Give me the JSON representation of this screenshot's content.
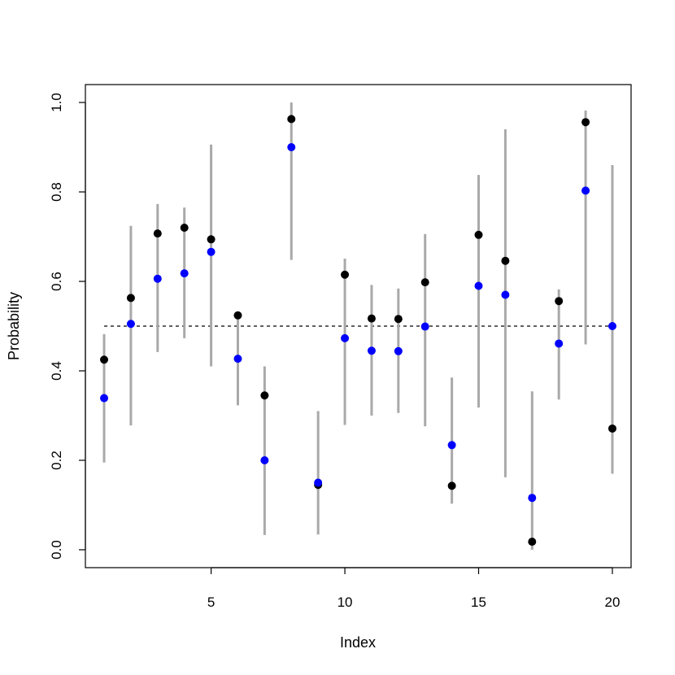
{
  "chart_data": {
    "type": "scatter",
    "title": "",
    "xlabel": "Index",
    "ylabel": "Probability",
    "xlim": [
      0.3,
      20.7
    ],
    "ylim": [
      -0.04,
      1.04
    ],
    "x_ticks": [
      5,
      10,
      15,
      20
    ],
    "y_ticks": [
      0.0,
      0.2,
      0.4,
      0.6,
      0.8,
      1.0
    ],
    "x_tick_labels": [
      "5",
      "10",
      "15",
      "20"
    ],
    "y_tick_labels": [
      "0.0",
      "0.2",
      "0.4",
      "0.6",
      "0.8",
      "1.0"
    ],
    "reference_line": {
      "y": 0.5,
      "x_from": 1,
      "x_to": 20,
      "style": "dashed",
      "color": "#000000"
    },
    "grid": false,
    "legend": "none",
    "x": [
      1,
      2,
      3,
      4,
      5,
      6,
      7,
      8,
      9,
      10,
      11,
      12,
      13,
      14,
      15,
      16,
      17,
      18,
      19,
      20
    ],
    "intervals": {
      "color": "#a9a9a9",
      "lower": [
        0.195,
        0.278,
        0.442,
        0.473,
        0.41,
        0.323,
        0.033,
        0.648,
        0.034,
        0.279,
        0.3,
        0.306,
        0.276,
        0.103,
        0.318,
        0.162,
        0.0,
        0.336,
        0.459,
        0.17
      ],
      "upper": [
        0.482,
        0.724,
        0.773,
        0.765,
        0.906,
        0.526,
        0.41,
        1.0,
        0.31,
        0.651,
        0.592,
        0.584,
        0.706,
        0.385,
        0.838,
        0.94,
        0.354,
        0.582,
        0.982,
        0.86
      ]
    },
    "series": [
      {
        "color": "#000000",
        "values": [
          0.425,
          0.563,
          0.707,
          0.72,
          0.694,
          0.524,
          0.345,
          0.963,
          0.145,
          0.615,
          0.517,
          0.516,
          0.598,
          0.143,
          0.704,
          0.646,
          0.018,
          0.556,
          0.956,
          0.271
        ]
      },
      {
        "color": "#0000ff",
        "values": [
          0.339,
          0.505,
          0.606,
          0.618,
          0.666,
          0.427,
          0.2,
          0.9,
          0.15,
          0.473,
          0.445,
          0.444,
          0.499,
          0.234,
          0.59,
          0.57,
          0.116,
          0.461,
          0.803,
          0.5
        ]
      }
    ]
  }
}
